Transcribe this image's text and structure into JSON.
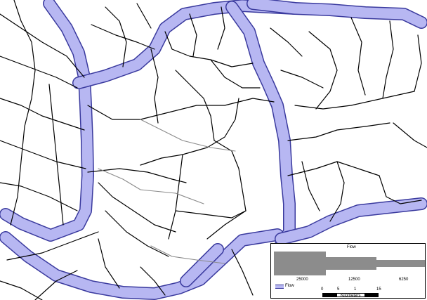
{
  "map": {
    "flow_color": "#b7b7f2",
    "flow_edge_color": "#3a3a9e",
    "road_color": "#000000",
    "secondary_road_color": "#8a8a8a"
  },
  "legend": {
    "title": "Flow",
    "bar_color": "#8c8c8c",
    "bar_values": [
      "25000",
      "12500",
      "6250"
    ],
    "swatch_label": "Flow",
    "scale_ticks": [
      "0",
      "5",
      "1",
      "15"
    ],
    "scale_units": "Kilometers"
  }
}
